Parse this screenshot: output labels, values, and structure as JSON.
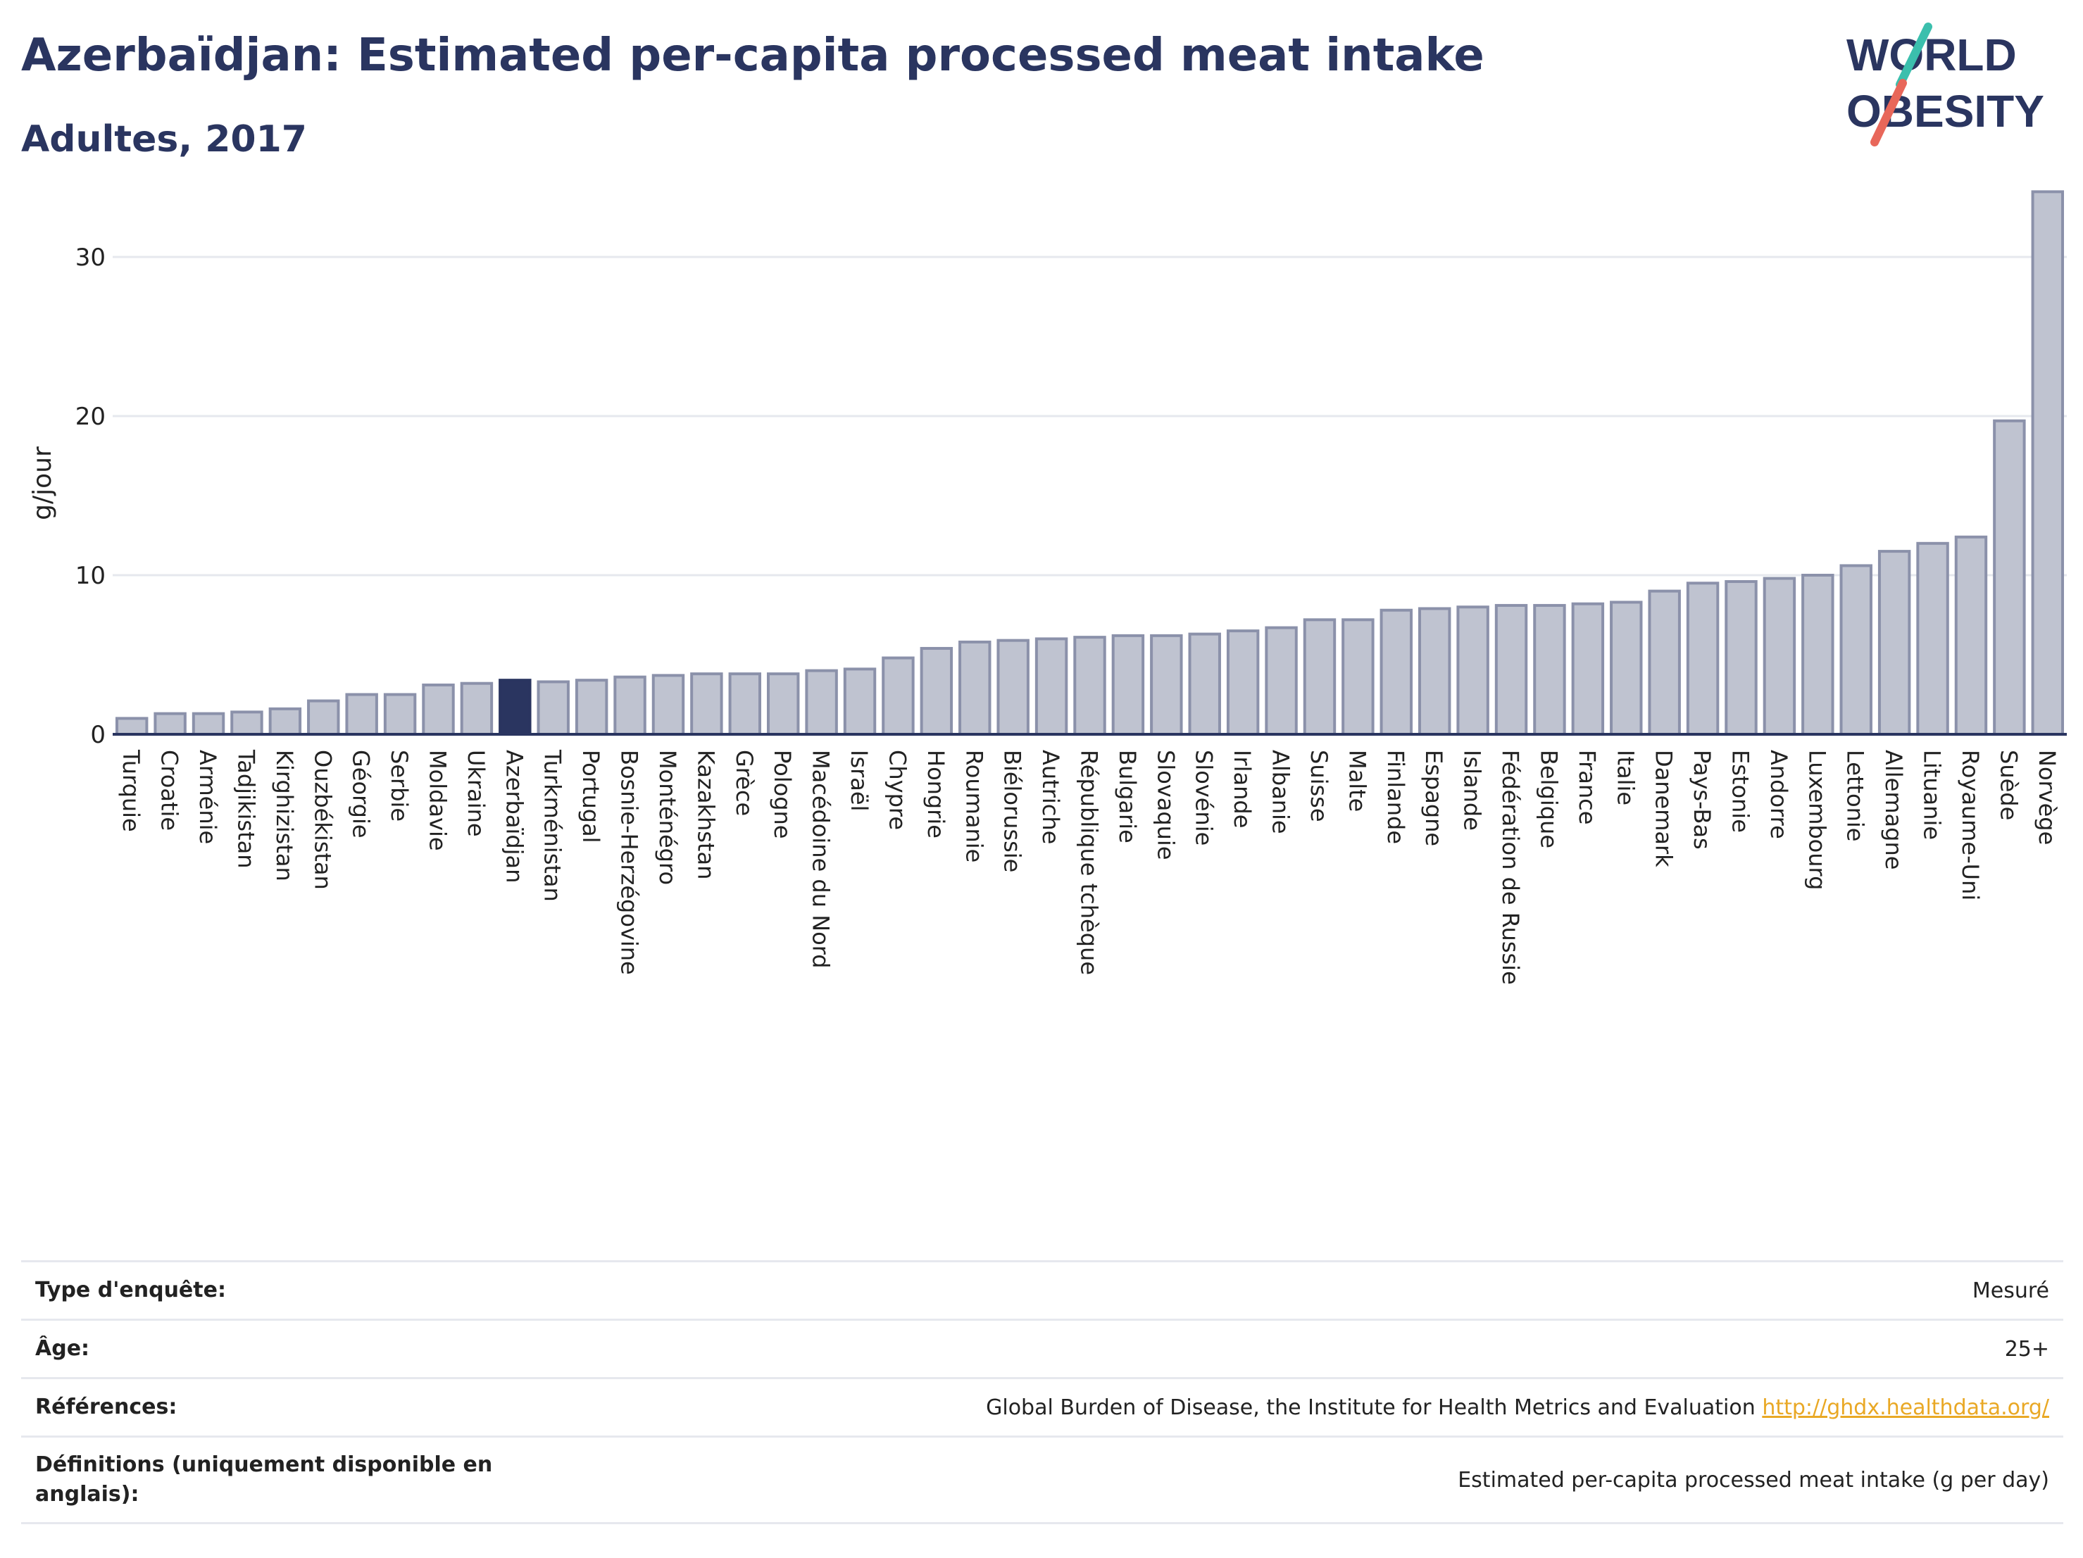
{
  "header": {
    "title": "Azerbaïdjan: Estimated per-capita processed meat intake",
    "subtitle": "Adultes, 2017",
    "logo_line1": "WORLD",
    "logo_line2": "OBESITY"
  },
  "chart_data": {
    "type": "bar",
    "ylabel": "g/jour",
    "xlabel": "",
    "ylim": [
      0,
      35
    ],
    "yticks": [
      0,
      10,
      20,
      30
    ],
    "grid": true,
    "highlight": "Azerbaïdjan",
    "colors": {
      "bar": "#bfc3d0",
      "bar_stroke": "#8b91aa",
      "highlight": "#2a3560",
      "grid": "#e6e8ee",
      "axis": "#2a3560"
    },
    "categories": [
      "Turquie",
      "Croatie",
      "Arménie",
      "Tadjikistan",
      "Kirghizistan",
      "Ouzbékistan",
      "Géorgie",
      "Serbie",
      "Moldavie",
      "Ukraine",
      "Azerbaïdjan",
      "Turkménistan",
      "Portugal",
      "Bosnie-Herzégovine",
      "Monténégro",
      "Kazakhstan",
      "Grèce",
      "Pologne",
      "Macédoine du Nord",
      "Israël",
      "Chypre",
      "Hongrie",
      "Roumanie",
      "Biélorussie",
      "Autriche",
      "République tchèque",
      "Bulgarie",
      "Slovaquie",
      "Slovénie",
      "Irlande",
      "Albanie",
      "Suisse",
      "Malte",
      "Finlande",
      "Espagne",
      "Islande",
      "Fédération de Russie",
      "Belgique",
      "France",
      "Italie",
      "Danemark",
      "Pays-Bas",
      "Estonie",
      "Andorre",
      "Luxembourg",
      "Lettonie",
      "Allemagne",
      "Lituanie",
      "Royaume-Uni",
      "Suède",
      "Norvège"
    ],
    "values": [
      1.0,
      1.3,
      1.3,
      1.4,
      1.6,
      2.1,
      2.5,
      2.5,
      3.1,
      3.2,
      3.4,
      3.3,
      3.4,
      3.6,
      3.7,
      3.8,
      3.8,
      3.8,
      4.0,
      4.1,
      4.8,
      5.4,
      5.8,
      5.9,
      6.0,
      6.1,
      6.2,
      6.2,
      6.3,
      6.5,
      6.7,
      7.2,
      7.2,
      7.8,
      7.9,
      8.0,
      8.1,
      8.1,
      8.2,
      8.3,
      9.0,
      9.5,
      9.6,
      9.8,
      10.0,
      10.6,
      11.5,
      12.0,
      12.4,
      19.7,
      34.1
    ]
  },
  "meta": {
    "rows": [
      {
        "label": "Type d'enquête:",
        "value": "Mesuré"
      },
      {
        "label": "Âge:",
        "value": "25+"
      },
      {
        "label": "Références:",
        "value": "Global Burden of Disease, the Institute for Health Metrics and Evaluation",
        "link": "http://ghdx.healthdata.org/"
      },
      {
        "label": "Définitions (uniquement disponible en anglais):",
        "value": "Estimated per-capita processed meat intake (g per day)"
      }
    ]
  }
}
